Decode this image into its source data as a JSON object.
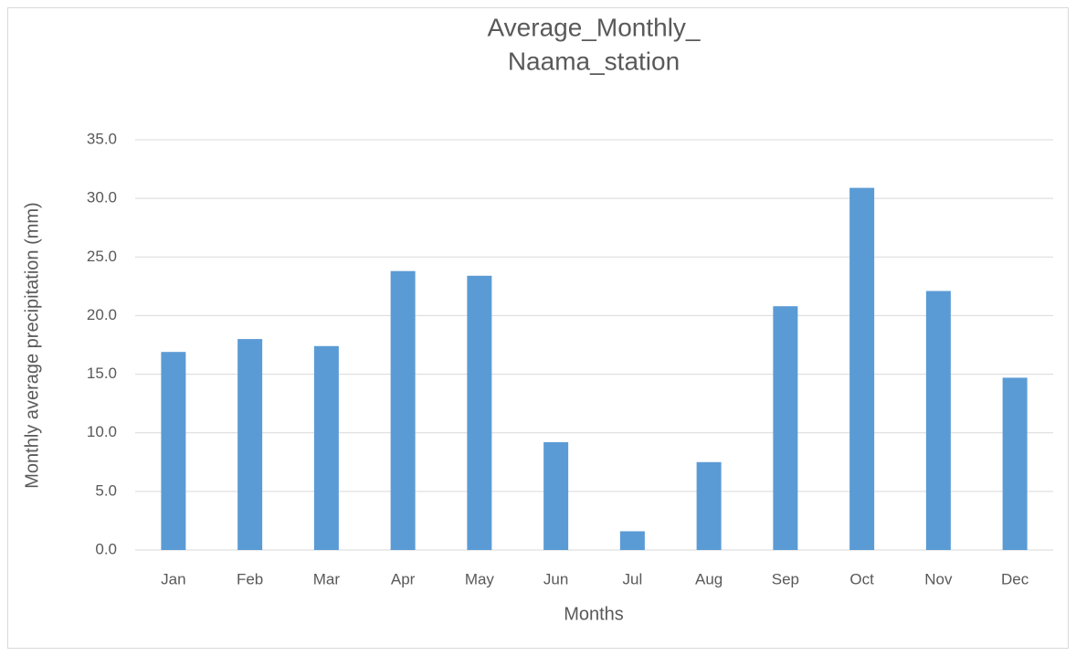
{
  "chart_data": {
    "type": "bar",
    "title": [
      "Average_Monthly_",
      "Naama_station"
    ],
    "x_label": "Months",
    "y_label": "Monthly average precipitation (mm)",
    "categories": [
      "Jan",
      "Feb",
      "Mar",
      "Apr",
      "May",
      "Jun",
      "Jul",
      "Aug",
      "Sep",
      "Oct",
      "Nov",
      "Dec"
    ],
    "values": [
      16.9,
      18.0,
      17.4,
      23.8,
      23.4,
      9.2,
      1.6,
      7.5,
      20.8,
      30.9,
      22.1,
      14.7
    ],
    "color": "#5b9bd5",
    "ylim": [
      0,
      35
    ],
    "yticks": [
      {
        "value": 0,
        "label": "0.0"
      },
      {
        "value": 5,
        "label": "5.0"
      },
      {
        "value": 10,
        "label": "10.0"
      },
      {
        "value": 15,
        "label": "15.0"
      },
      {
        "value": 20,
        "label": "20.0"
      },
      {
        "value": 25,
        "label": "25.0"
      },
      {
        "value": 30,
        "label": "30.0"
      },
      {
        "value": 35,
        "label": "35.0"
      }
    ],
    "grid": true
  }
}
